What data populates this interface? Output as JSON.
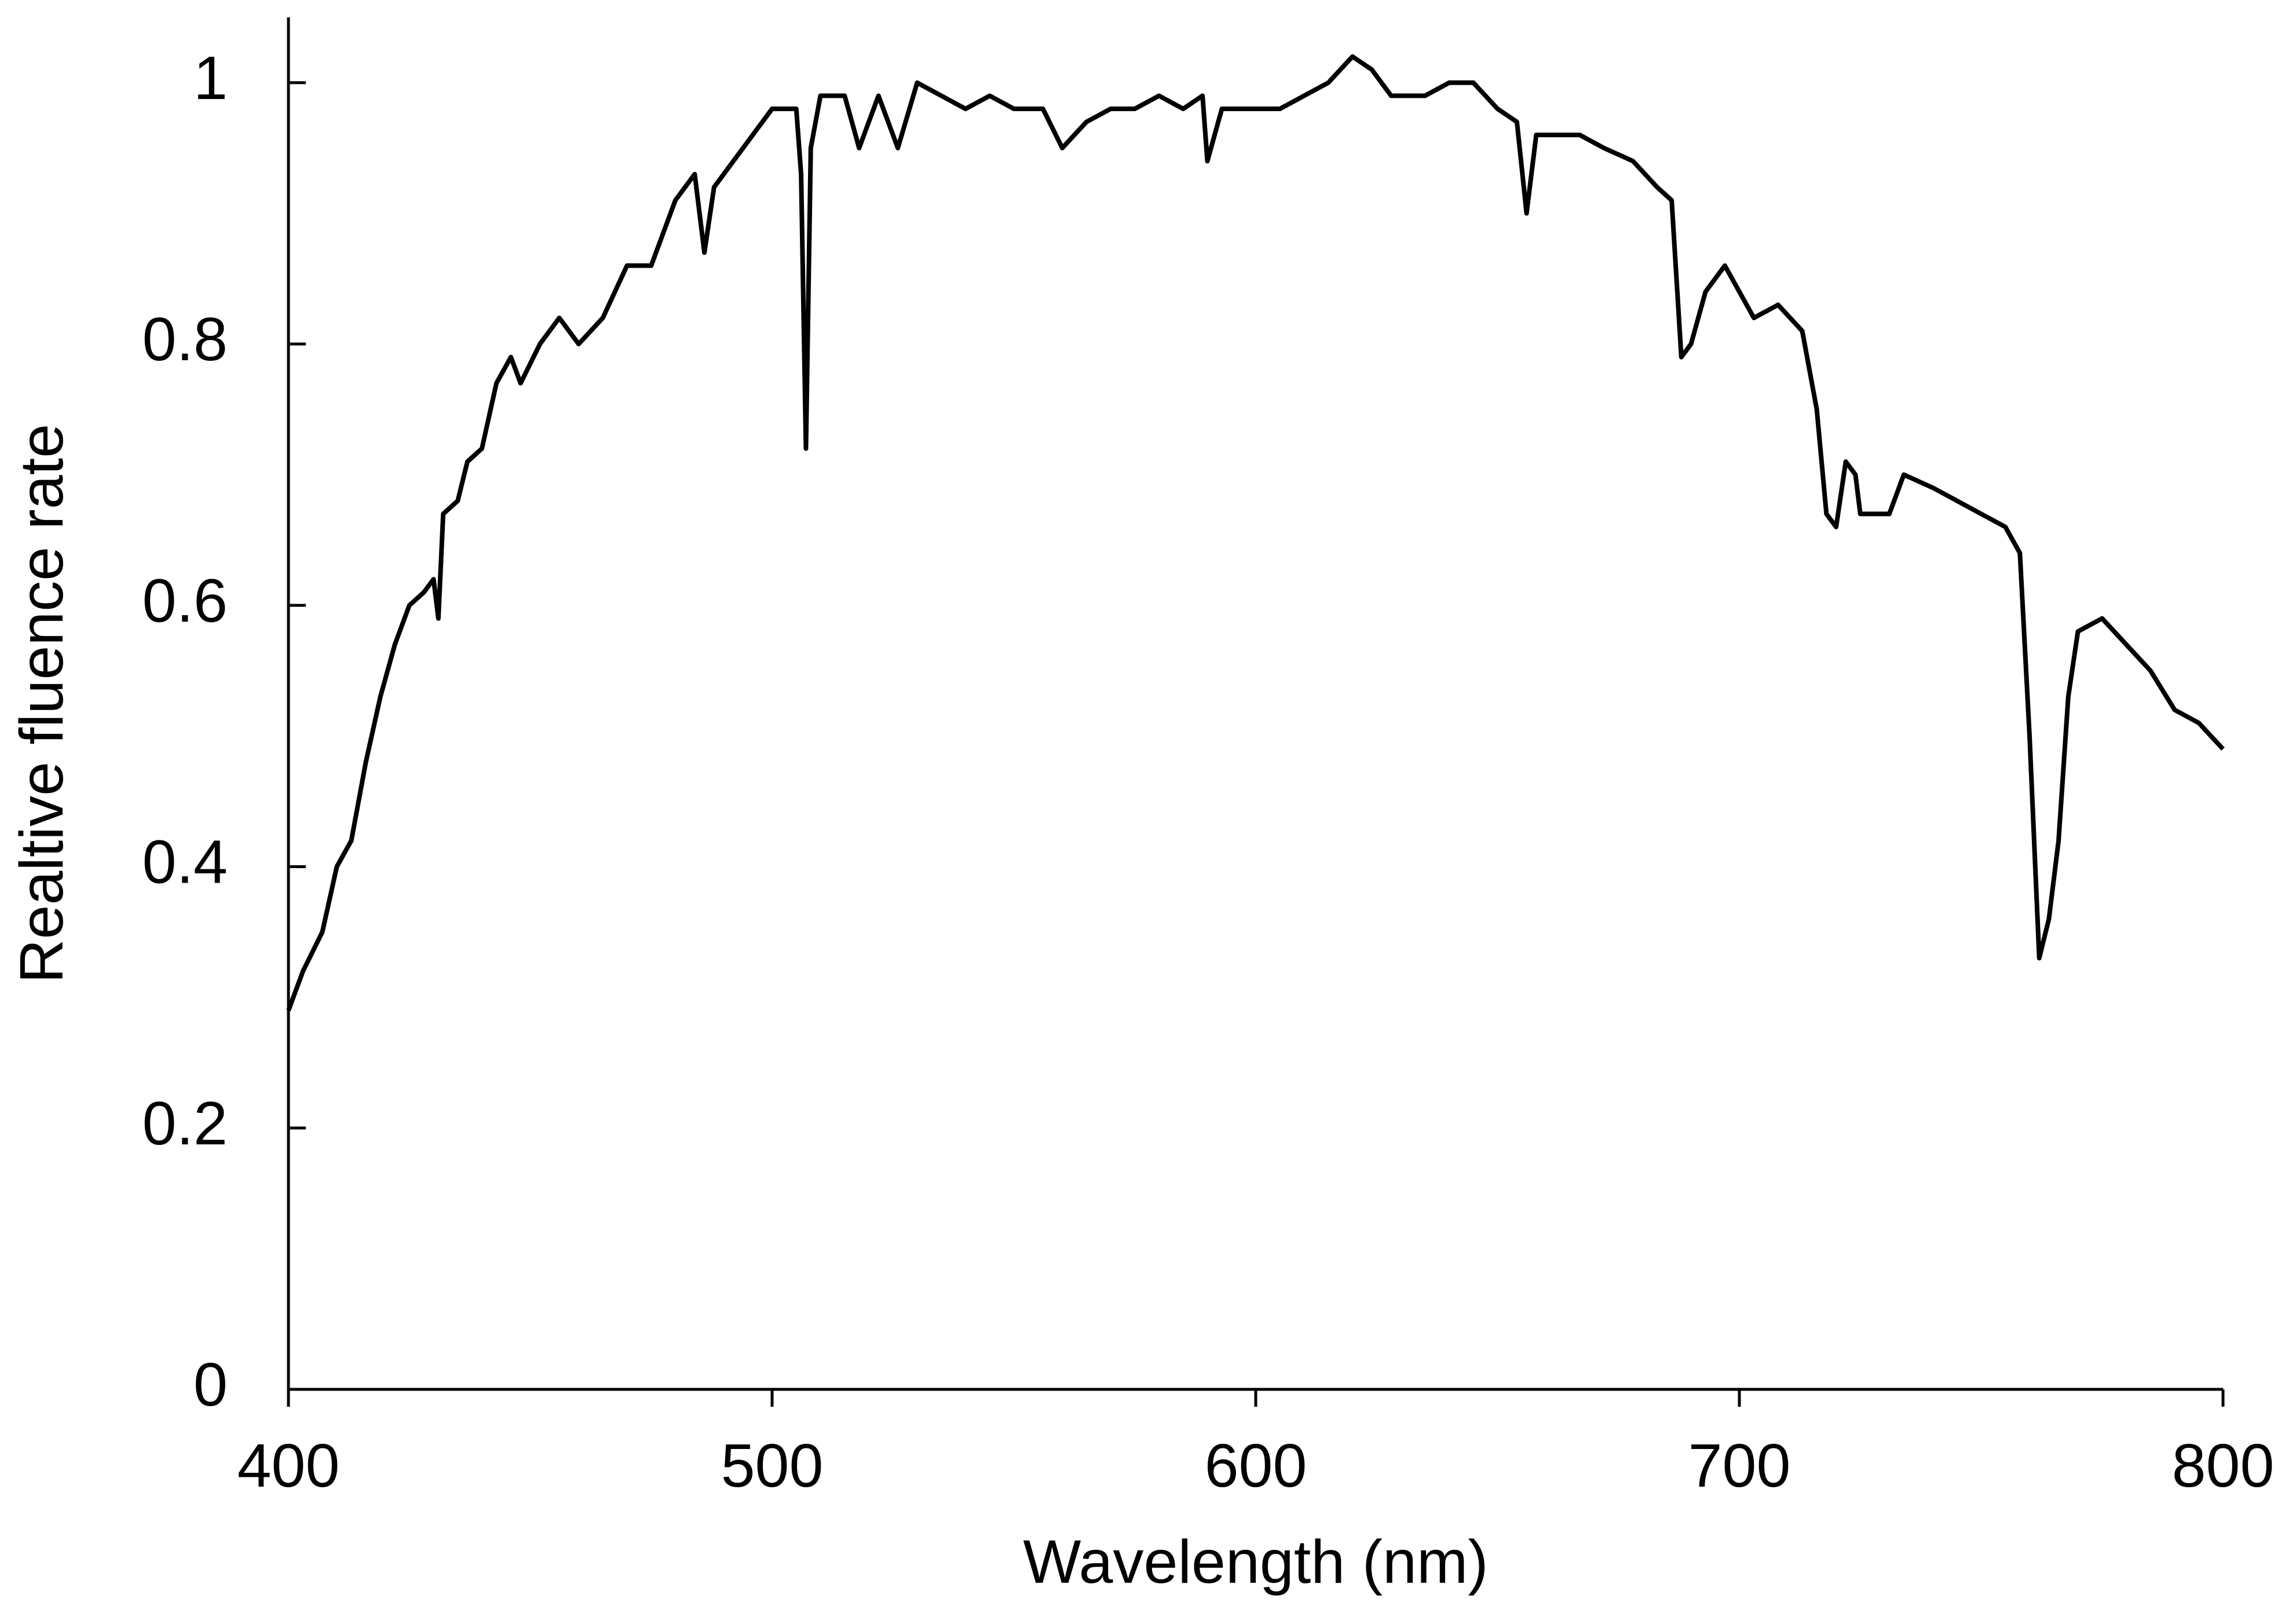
{
  "chart_data": {
    "type": "line",
    "x_label": "Wavelength (nm)",
    "y_label": "Realtive fluence rate",
    "xlim": [
      400,
      800
    ],
    "xticks": [
      400,
      500,
      600,
      700,
      800
    ],
    "ylim": [
      0,
      1.05
    ],
    "yticks": [
      0,
      0.2,
      0.4,
      0.6,
      0.8,
      1
    ],
    "series": [
      {
        "color": "#000000",
        "x": [
          400,
          403,
          407,
          410,
          413,
          416,
          419,
          422,
          425,
          428,
          430,
          431,
          432,
          435,
          437,
          440,
          443,
          446,
          448,
          452,
          456,
          460,
          465,
          470,
          475,
          480,
          484,
          486,
          488,
          492,
          496,
          500,
          505,
          506,
          507,
          508,
          510,
          515,
          518,
          522,
          526,
          530,
          535,
          540,
          545,
          550,
          556,
          560,
          565,
          570,
          575,
          580,
          585,
          589,
          590,
          593,
          600,
          605,
          610,
          615,
          620,
          624,
          628,
          635,
          640,
          645,
          650,
          654,
          656,
          658,
          662,
          667,
          672,
          678,
          683,
          686,
          688,
          690,
          693,
          697,
          700,
          703,
          708,
          713,
          716,
          718,
          720,
          722,
          724,
          725,
          728,
          731,
          734,
          740,
          745,
          750,
          755,
          758,
          760,
          762,
          764,
          766,
          768,
          770,
          775,
          780,
          785,
          790,
          795,
          800
        ],
        "values": [
          0.29,
          0.32,
          0.35,
          0.4,
          0.42,
          0.48,
          0.53,
          0.57,
          0.6,
          0.61,
          0.62,
          0.59,
          0.67,
          0.68,
          0.71,
          0.72,
          0.77,
          0.79,
          0.77,
          0.8,
          0.82,
          0.8,
          0.82,
          0.86,
          0.86,
          0.91,
          0.93,
          0.87,
          0.92,
          0.94,
          0.96,
          0.98,
          0.98,
          0.93,
          0.72,
          0.95,
          0.99,
          0.99,
          0.95,
          0.99,
          0.95,
          1.0,
          0.99,
          0.98,
          0.99,
          0.98,
          0.98,
          0.95,
          0.97,
          0.98,
          0.98,
          0.99,
          0.98,
          0.99,
          0.94,
          0.98,
          0.98,
          0.98,
          0.99,
          1.0,
          1.02,
          1.01,
          0.99,
          0.99,
          1.0,
          1.0,
          0.98,
          0.97,
          0.9,
          0.96,
          0.96,
          0.96,
          0.95,
          0.94,
          0.92,
          0.91,
          0.79,
          0.8,
          0.84,
          0.86,
          0.84,
          0.82,
          0.83,
          0.81,
          0.75,
          0.67,
          0.66,
          0.71,
          0.7,
          0.67,
          0.67,
          0.67,
          0.7,
          0.69,
          0.68,
          0.67,
          0.66,
          0.64,
          0.5,
          0.33,
          0.36,
          0.42,
          0.53,
          0.58,
          0.59,
          0.57,
          0.55,
          0.52,
          0.51,
          0.49
        ]
      }
    ]
  }
}
